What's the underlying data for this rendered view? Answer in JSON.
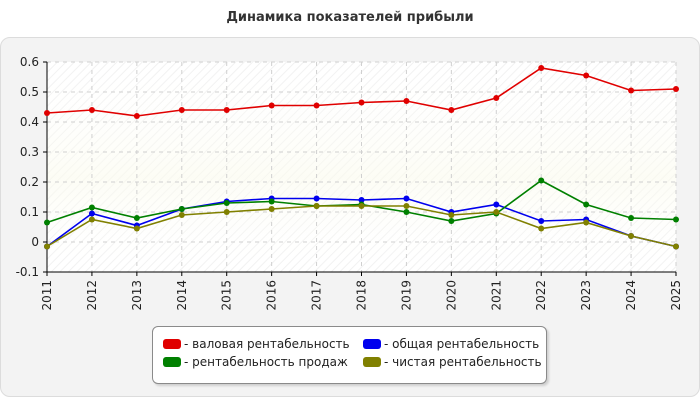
{
  "chart_data": {
    "type": "line",
    "title": "Динамика показателей прибыли",
    "xlabel": "",
    "ylabel": "",
    "x": [
      2011,
      2012,
      2013,
      2014,
      2015,
      2016,
      2017,
      2018,
      2019,
      2020,
      2021,
      2022,
      2023,
      2024,
      2025
    ],
    "ylim": [
      -0.1,
      0.6
    ],
    "yticks": [
      "-0.1",
      "0",
      "0.1",
      "0.2",
      "0.3",
      "0.4",
      "0.5",
      "0.6"
    ],
    "ytick_values": [
      -0.1,
      0,
      0.1,
      0.2,
      0.3,
      0.4,
      0.5,
      0.6
    ],
    "grid": true,
    "legend_position": "bottom-center",
    "series": [
      {
        "name": "- валовая рентабельность",
        "color": "#e00000",
        "values": [
          0.43,
          0.44,
          0.42,
          0.44,
          0.44,
          0.455,
          0.455,
          0.465,
          0.47,
          0.44,
          0.48,
          0.58,
          0.555,
          0.505,
          0.51
        ]
      },
      {
        "name": "- общая рентабельность",
        "color": "#0000ee",
        "values": [
          -0.015,
          0.095,
          0.055,
          0.11,
          0.135,
          0.145,
          0.145,
          0.14,
          0.145,
          0.1,
          0.125,
          0.07,
          0.075,
          0.02,
          -0.015
        ]
      },
      {
        "name": "- рентабельность продаж",
        "color": "#008000",
        "values": [
          0.065,
          0.115,
          0.08,
          0.11,
          0.13,
          0.135,
          0.12,
          0.125,
          0.1,
          0.07,
          0.095,
          0.205,
          0.125,
          0.08,
          0.075
        ]
      },
      {
        "name": "- чистая рентабельность",
        "color": "#808000",
        "values": [
          -0.015,
          0.075,
          0.045,
          0.09,
          0.1,
          0.11,
          0.12,
          0.12,
          0.12,
          0.09,
          0.1,
          0.045,
          0.065,
          0.02,
          -0.015
        ]
      }
    ]
  }
}
